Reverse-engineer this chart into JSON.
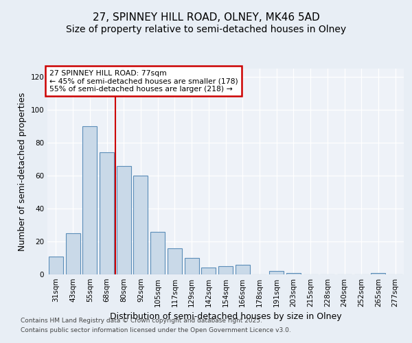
{
  "title_line1": "27, SPINNEY HILL ROAD, OLNEY, MK46 5AD",
  "title_line2": "Size of property relative to semi-detached houses in Olney",
  "xlabel": "Distribution of semi-detached houses by size in Olney",
  "ylabel": "Number of semi-detached properties",
  "bins": [
    "31sqm",
    "43sqm",
    "55sqm",
    "68sqm",
    "80sqm",
    "92sqm",
    "105sqm",
    "117sqm",
    "129sqm",
    "142sqm",
    "154sqm",
    "166sqm",
    "178sqm",
    "191sqm",
    "203sqm",
    "215sqm",
    "228sqm",
    "240sqm",
    "252sqm",
    "265sqm",
    "277sqm"
  ],
  "values": [
    11,
    25,
    90,
    74,
    66,
    60,
    26,
    16,
    10,
    4,
    5,
    6,
    0,
    2,
    1,
    0,
    0,
    0,
    0,
    1,
    0
  ],
  "bar_color": "#c9d9e8",
  "bar_edge_color": "#5b8db8",
  "vline_x": 3.5,
  "vline_color": "#cc0000",
  "annotation_text": "27 SPINNEY HILL ROAD: 77sqm\n← 45% of semi-detached houses are smaller (178)\n55% of semi-detached houses are larger (218) →",
  "annotation_box_color": "#cc0000",
  "ylim": [
    0,
    125
  ],
  "yticks": [
    0,
    20,
    40,
    60,
    80,
    100,
    120
  ],
  "footer_line1": "Contains HM Land Registry data © Crown copyright and database right 2025.",
  "footer_line2": "Contains public sector information licensed under the Open Government Licence v3.0.",
  "bg_color": "#e8eef5",
  "plot_bg_color": "#eef2f8",
  "title_fontsize": 11,
  "subtitle_fontsize": 10,
  "tick_fontsize": 7.5,
  "label_fontsize": 9,
  "footer_fontsize": 6.5
}
